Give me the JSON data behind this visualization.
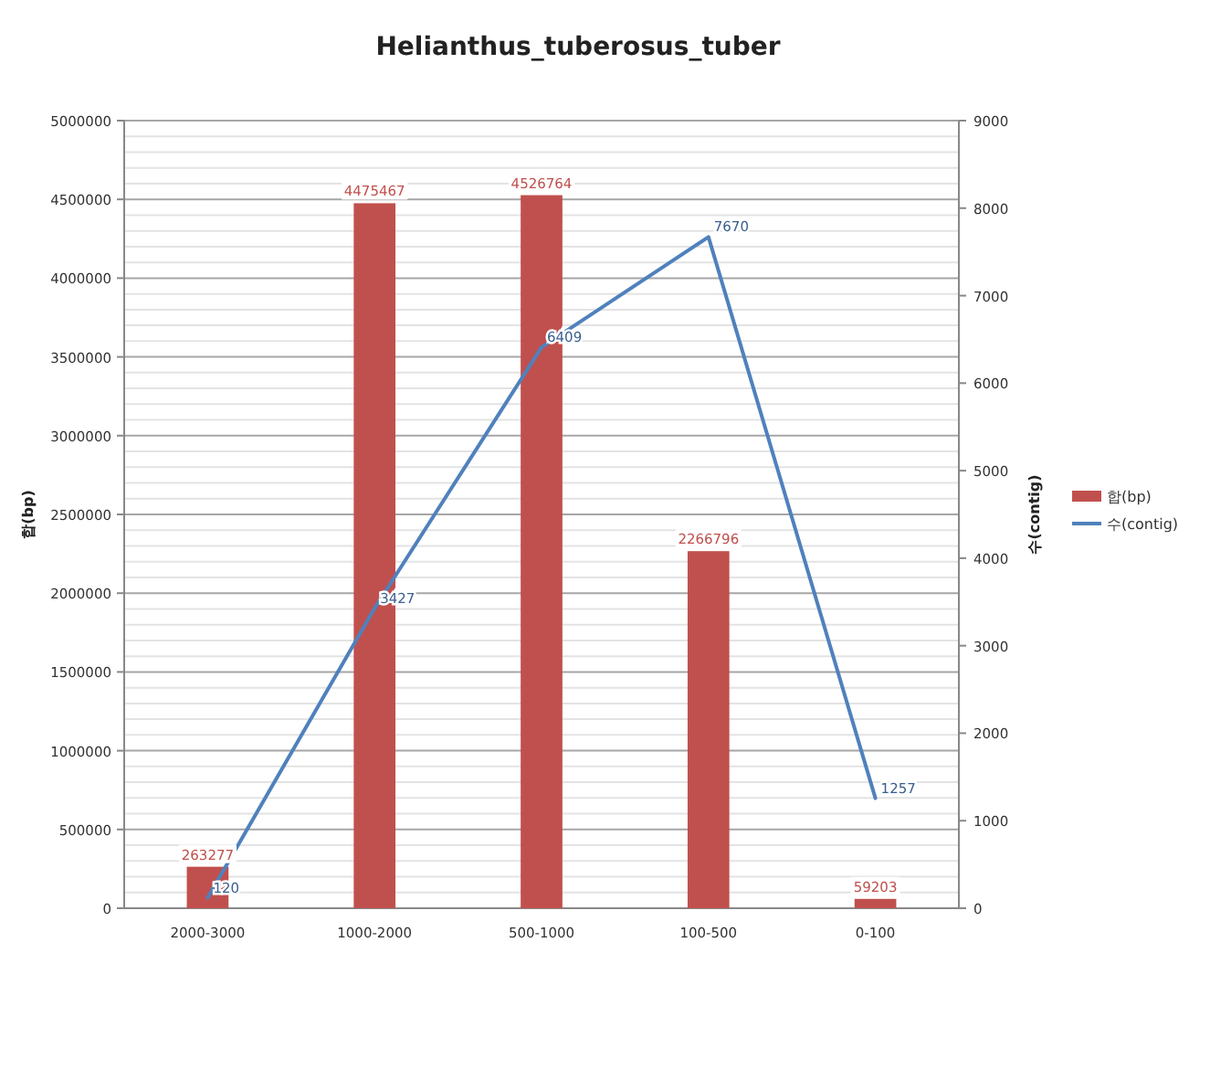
{
  "chart_data": {
    "type": "bar",
    "title": "Helianthus_tuberosus_tuber",
    "categories": [
      "2000-3000",
      "1000-2000",
      "500-1000",
      "100-500",
      "0-100"
    ],
    "series": [
      {
        "name": "합(bp)",
        "color": "#c0504d",
        "values": [
          263277,
          4475467,
          4526764,
          2266796,
          59203
        ]
      },
      {
        "name": "수(contig)",
        "type": "line",
        "axis": "y2",
        "marker": "none",
        "color": "#4f81bd",
        "values": [
          120,
          3427,
          6409,
          7670,
          1257
        ]
      }
    ],
    "ylabel": "합(bp)",
    "y2label": "수(contig)",
    "ylim": [
      0,
      5000000
    ],
    "yticks": [
      0,
      500000,
      1000000,
      1500000,
      2000000,
      2500000,
      3000000,
      3500000,
      4000000,
      4500000,
      5000000
    ],
    "y2lim": [
      0,
      9000
    ],
    "y2ticks": [
      0,
      1000,
      2000,
      3000,
      4000,
      5000,
      6000,
      7000,
      8000,
      9000
    ],
    "data_labels": true,
    "grid": "y",
    "legend": "right"
  }
}
